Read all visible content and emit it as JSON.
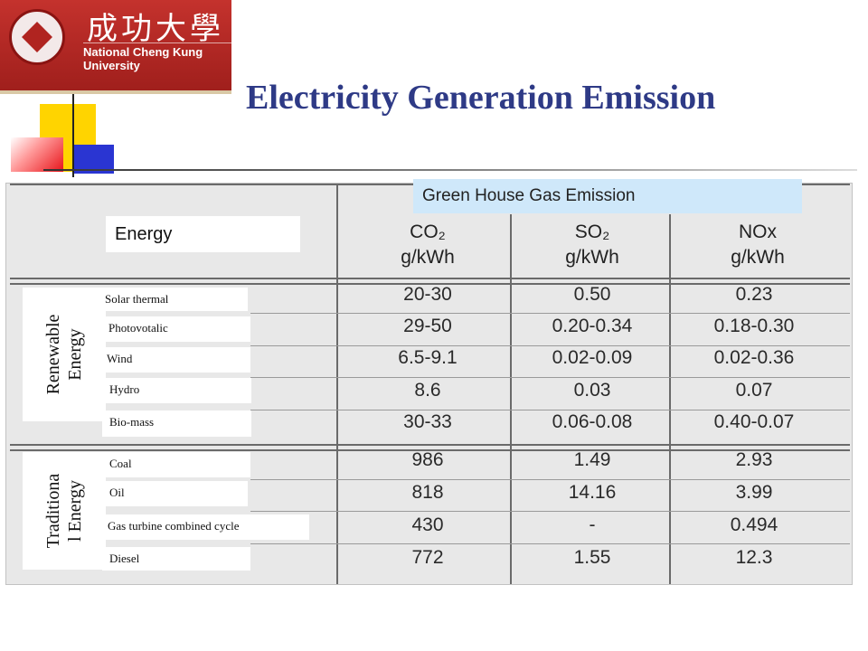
{
  "logo": {
    "cjk": "成功大學",
    "name": "National Cheng Kung University"
  },
  "slide": {
    "title": "Electricity Generation Emission"
  },
  "table": {
    "group_header": "Green House Gas Emission",
    "energy_header": "Energy",
    "columns": [
      {
        "gas": "CO₂",
        "unit": "g/kWh"
      },
      {
        "gas": "SO₂",
        "unit": "g/kWh"
      },
      {
        "gas": "NOx",
        "unit": "g/kWh"
      }
    ],
    "categories": {
      "renewable": {
        "line1": "Renewable",
        "line2": "Energy"
      },
      "traditional": {
        "line1": "Traditiona",
        "line2": "l Energy"
      }
    },
    "rows": [
      {
        "label": "Solar thermal",
        "co2": "20-30",
        "so2": "0.50",
        "nox": "0.23"
      },
      {
        "label": "Photovotalic",
        "co2": "29-50",
        "so2": "0.20-0.34",
        "nox": "0.18-0.30"
      },
      {
        "label": "Wind",
        "co2": "6.5-9.1",
        "so2": "0.02-0.09",
        "nox": "0.02-0.36"
      },
      {
        "label": "Hydro",
        "co2": "8.6",
        "so2": "0.03",
        "nox": "0.07"
      },
      {
        "label": "Bio-mass",
        "co2": "30-33",
        "so2": "0.06-0.08",
        "nox": "0.40-0.07"
      },
      {
        "label": "Coal",
        "co2": "986",
        "so2": "1.49",
        "nox": "2.93"
      },
      {
        "label": "Oil",
        "co2": "818",
        "so2": "14.16",
        "nox": "3.99"
      },
      {
        "label": "Gas turbine combined cycle",
        "co2": "430",
        "so2": "-",
        "nox": "0.494"
      },
      {
        "label": "Diesel",
        "co2": "772",
        "so2": "1.55",
        "nox": "12.3"
      }
    ]
  },
  "colors": {
    "title": "#2e3a86",
    "logo_red": "#c4322d",
    "header_highlight": "#cfe8fa",
    "table_bg": "#e8e8e8"
  }
}
